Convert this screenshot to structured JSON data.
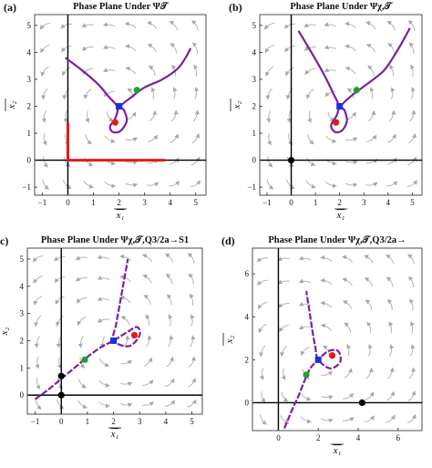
{
  "chart_data": [
    {
      "type": "scatter",
      "letter": "(a)",
      "title": "Phase Plane Under Ψ𝒯",
      "xlabel": "x₁",
      "ylabel": "x₂",
      "xlim": [
        -1.3,
        5.4
      ],
      "ylim": [
        -1.3,
        5.4
      ],
      "xticks": [
        -1,
        0,
        1,
        2,
        3,
        4,
        5
      ],
      "yticks": [
        -1,
        0,
        1,
        2,
        3,
        4,
        5
      ],
      "curve": [
        [
          -0.1,
          3.8
        ],
        [
          0.6,
          3.3
        ],
        [
          1.2,
          2.8
        ],
        [
          1.6,
          2.35
        ],
        [
          1.85,
          2.1
        ],
        [
          1.95,
          1.9
        ],
        [
          1.85,
          1.55
        ],
        [
          1.65,
          1.25
        ],
        [
          1.75,
          1.05
        ],
        [
          2.05,
          1.08
        ],
        [
          2.3,
          1.45
        ],
        [
          2.2,
          1.85
        ],
        [
          2.05,
          2.0
        ],
        [
          2.5,
          2.35
        ],
        [
          3.0,
          2.7
        ],
        [
          3.7,
          3.0
        ],
        [
          4.3,
          3.4
        ],
        [
          4.6,
          3.8
        ],
        [
          4.8,
          4.15
        ]
      ],
      "red_segments": [
        [
          [
            0,
            0
          ],
          [
            3.8,
            0
          ]
        ],
        [
          [
            0,
            0
          ],
          [
            0,
            1.4
          ]
        ]
      ],
      "points": [
        {
          "x": 2.0,
          "y": 2.0,
          "color": "#1a2ee6"
        },
        {
          "x": 2.7,
          "y": 2.6,
          "color": "#22a22b"
        },
        {
          "x": 1.85,
          "y": 1.4,
          "color": "#e31b1b"
        }
      ]
    },
    {
      "type": "scatter",
      "letter": "(b)",
      "title": "Phase Plane Under Ψχ,𝒯",
      "xlabel": "x₁",
      "ylabel": "x₂",
      "xlim": [
        -1.3,
        5.4
      ],
      "ylim": [
        -1.3,
        5.4
      ],
      "xticks": [
        -1,
        0,
        1,
        2,
        3,
        4,
        5
      ],
      "yticks": [
        -1,
        0,
        1,
        2,
        3,
        4,
        5
      ],
      "curve": [
        [
          0.3,
          4.8
        ],
        [
          0.9,
          3.9
        ],
        [
          1.4,
          3.1
        ],
        [
          1.75,
          2.45
        ],
        [
          1.95,
          2.05
        ],
        [
          1.9,
          1.7
        ],
        [
          1.65,
          1.3
        ],
        [
          1.8,
          1.05
        ],
        [
          2.1,
          1.1
        ],
        [
          2.3,
          1.45
        ],
        [
          2.2,
          1.85
        ],
        [
          2.05,
          2.0
        ],
        [
          2.5,
          2.4
        ],
        [
          3.1,
          2.8
        ],
        [
          3.8,
          3.3
        ],
        [
          4.2,
          3.8
        ],
        [
          4.6,
          4.4
        ],
        [
          4.9,
          4.9
        ]
      ],
      "red_segments": [],
      "points": [
        {
          "x": 0,
          "y": 0,
          "color": "#000000"
        },
        {
          "x": 2.0,
          "y": 2.0,
          "color": "#1a2ee6"
        },
        {
          "x": 2.7,
          "y": 2.6,
          "color": "#22a22b"
        },
        {
          "x": 1.85,
          "y": 1.4,
          "color": "#e31b1b"
        }
      ]
    },
    {
      "type": "scatter",
      "letter": "(c)",
      "title": "Phase Plane Under Ψχ,𝒯,Q3/2a→S1",
      "xlabel": "x₁",
      "ylabel": "x₂",
      "xlim": [
        -1.3,
        5.4
      ],
      "ylim": [
        -0.7,
        5.4
      ],
      "xticks": [
        -1,
        0,
        1,
        2,
        3,
        4,
        5
      ],
      "yticks": [
        0,
        1,
        2,
        3,
        4,
        5
      ],
      "curve": [
        [
          -1.0,
          -0.15
        ],
        [
          -0.5,
          0.2
        ],
        [
          0,
          0.6
        ],
        [
          0.5,
          1.0
        ],
        [
          1.0,
          1.4
        ],
        [
          1.5,
          1.75
        ],
        [
          2.0,
          2.0
        ],
        [
          2.5,
          2.3
        ],
        [
          2.9,
          2.5
        ],
        [
          3.0,
          2.2
        ],
        [
          2.6,
          1.8
        ],
        [
          2.0,
          2.0
        ],
        [
          2.1,
          2.6
        ],
        [
          2.25,
          3.4
        ],
        [
          2.4,
          4.2
        ],
        [
          2.55,
          5.0
        ]
      ],
      "red_segments": [],
      "points": [
        {
          "x": 0,
          "y": 0,
          "color": "#000000"
        },
        {
          "x": 0,
          "y": 0.7,
          "color": "#000000"
        },
        {
          "x": 0.9,
          "y": 1.3,
          "color": "#22a22b"
        },
        {
          "x": 2.0,
          "y": 2.0,
          "color": "#1a2ee6"
        },
        {
          "x": 2.8,
          "y": 2.2,
          "color": "#e31b1b"
        }
      ]
    },
    {
      "type": "scatter",
      "letter": "(d)",
      "title": "Phase Plane Under Ψχ,𝒯,Q3/2a→",
      "xlabel": "x₁",
      "ylabel": "x₂",
      "xlim": [
        -1.3,
        7.2
      ],
      "ylim": [
        -1.3,
        7.2
      ],
      "xticks": [
        0,
        2,
        4,
        6
      ],
      "yticks": [
        0,
        2,
        4,
        6
      ],
      "curve": [
        [
          0.3,
          -1.2
        ],
        [
          0.7,
          -0.3
        ],
        [
          1.0,
          0.3
        ],
        [
          1.3,
          1.0
        ],
        [
          1.6,
          1.6
        ],
        [
          2.0,
          2.0
        ],
        [
          2.5,
          2.4
        ],
        [
          3.0,
          2.4
        ],
        [
          3.1,
          1.9
        ],
        [
          2.6,
          1.6
        ],
        [
          2.0,
          2.0
        ],
        [
          1.85,
          2.6
        ],
        [
          1.7,
          3.4
        ],
        [
          1.55,
          4.3
        ],
        [
          1.4,
          5.2
        ]
      ],
      "red_segments": [],
      "points": [
        {
          "x": 4.2,
          "y": 0,
          "color": "#000000"
        },
        {
          "x": 1.4,
          "y": 1.3,
          "color": "#22a22b"
        },
        {
          "x": 2.0,
          "y": 2.0,
          "color": "#1a2ee6"
        },
        {
          "x": 2.7,
          "y": 2.2,
          "color": "#e31b1b"
        }
      ]
    }
  ],
  "colors": {
    "curve": "#7b1fa2",
    "streamline": "#b5b5b5",
    "red_segment": "#e31b1b"
  }
}
